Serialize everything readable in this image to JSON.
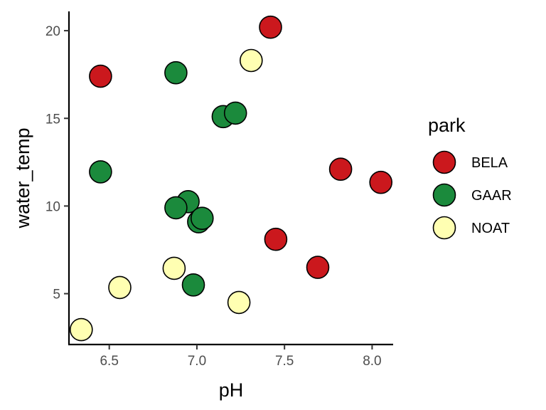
{
  "chart_data": {
    "type": "scatter",
    "title": "",
    "xlabel": "pH",
    "ylabel": "water_temp",
    "xlim": [
      6.27,
      8.12
    ],
    "ylim": [
      2.1,
      21.1
    ],
    "xticks": [
      6.5,
      7.0,
      7.5,
      8.0
    ],
    "xtick_labels": [
      "6.5",
      "7.0",
      "7.5",
      "8.0"
    ],
    "yticks": [
      5,
      10,
      15,
      20
    ],
    "ytick_labels": [
      "5",
      "10",
      "15",
      "20"
    ],
    "grid": false,
    "legend": {
      "title": "park",
      "placement": "right"
    },
    "series": [
      {
        "name": "BELA",
        "color": "#cb181d",
        "points": [
          {
            "x": 6.45,
            "y": 17.4
          },
          {
            "x": 7.42,
            "y": 20.2
          },
          {
            "x": 7.82,
            "y": 12.1
          },
          {
            "x": 8.05,
            "y": 11.35
          },
          {
            "x": 7.45,
            "y": 8.1
          },
          {
            "x": 7.69,
            "y": 6.5
          }
        ]
      },
      {
        "name": "GAAR",
        "color": "#1b8a3c",
        "points": [
          {
            "x": 6.88,
            "y": 17.6
          },
          {
            "x": 7.15,
            "y": 15.1
          },
          {
            "x": 7.22,
            "y": 15.3
          },
          {
            "x": 6.45,
            "y": 11.95
          },
          {
            "x": 6.95,
            "y": 10.25
          },
          {
            "x": 6.88,
            "y": 9.9
          },
          {
            "x": 7.01,
            "y": 9.1
          },
          {
            "x": 7.03,
            "y": 9.3
          },
          {
            "x": 6.98,
            "y": 5.5
          }
        ]
      },
      {
        "name": "NOAT",
        "color": "#ffffb2",
        "points": [
          {
            "x": 7.31,
            "y": 18.3
          },
          {
            "x": 6.87,
            "y": 6.45
          },
          {
            "x": 6.56,
            "y": 5.35
          },
          {
            "x": 7.24,
            "y": 4.5
          },
          {
            "x": 6.34,
            "y": 2.95
          }
        ]
      }
    ]
  }
}
